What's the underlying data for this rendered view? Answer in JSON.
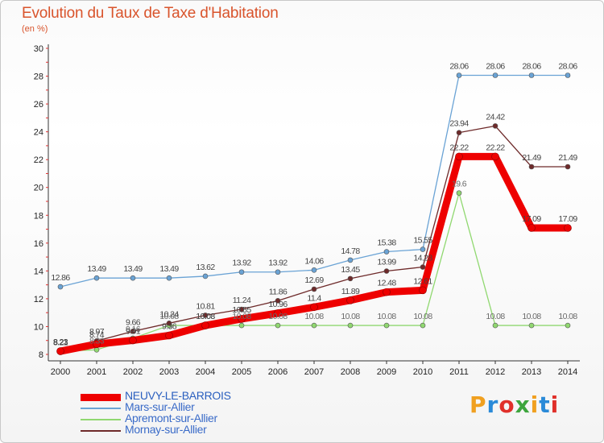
{
  "header": {
    "title": "Evolution du Taux de Taxe d'Habitation",
    "subtitle": "(en %)"
  },
  "logo": {
    "letters": [
      "P",
      "r",
      "o",
      "x",
      "i",
      "t",
      "i"
    ],
    "colors": [
      "#f0a020",
      "#2a8ad8",
      "#e0302a",
      "#3da53d",
      "#f0a020",
      "#2a8ad8",
      "#e0302a"
    ]
  },
  "chart_data": {
    "type": "line",
    "title": "Evolution du Taux de Taxe d'Habitation",
    "subtitle": "(en %)",
    "x": [
      "2000",
      "2001",
      "2002",
      "2003",
      "2004",
      "2005",
      "2006",
      "2007",
      "2008",
      "2009",
      "2010",
      "2011",
      "2012",
      "2013",
      "2014"
    ],
    "ylim": [
      8,
      30
    ],
    "yticks": [
      "8",
      "10",
      "12",
      "14",
      "16",
      "18",
      "20",
      "22",
      "24",
      "26",
      "28",
      "30"
    ],
    "grid": false,
    "legend": "bottom-left",
    "series": [
      {
        "name": "Mars-sur-Allier",
        "color": "#6aa3d5",
        "values": [
          12.86,
          13.49,
          13.49,
          13.49,
          13.62,
          13.92,
          13.92,
          14.06,
          14.78,
          15.38,
          15.55,
          28.06,
          28.06,
          28.06,
          28.06
        ],
        "labels": [
          "12.86",
          "13.49",
          "13.49",
          "13.49",
          "13.62",
          "13.92",
          "13.92",
          "14.06",
          "14.78",
          "15.38",
          "15.55",
          "28.06",
          "28.06",
          "28.06",
          "28.06"
        ]
      },
      {
        "name": "Apremont-sur-Allier",
        "color": "#90d870",
        "values": [
          8.23,
          8.33,
          9.16,
          10.08,
          10.08,
          10.08,
          10.08,
          10.08,
          10.08,
          10.08,
          10.08,
          19.6,
          10.08,
          10.08,
          10.08
        ],
        "labels": [
          "8.23",
          "8.33",
          "9.16",
          "10.08",
          "10.08",
          "10.08",
          "10.08",
          "10.08",
          "10.08",
          "10.08",
          "10.08",
          "19.6",
          "10.08",
          "10.08",
          "10.08"
        ]
      },
      {
        "name": "Mornay-sur-Allier",
        "color": "#6e2a2a",
        "values": [
          8.21,
          8.97,
          9.66,
          10.24,
          10.81,
          11.24,
          11.86,
          12.69,
          13.45,
          13.99,
          14.28,
          23.94,
          24.42,
          21.49,
          21.49
        ],
        "labels": [
          "8.21",
          "8.97",
          "9.66",
          "10.24",
          "10.81",
          "11.24",
          "11.86",
          "12.69",
          "13.45",
          "13.99",
          "14.28",
          "23.94",
          "24.42",
          "21.49",
          "21.49"
        ]
      },
      {
        "name": "NEUVY-LE-BARROIS",
        "color": "#ee0000",
        "values": [
          8.23,
          8.74,
          9.01,
          9.36,
          10.08,
          10.55,
          10.96,
          11.4,
          11.89,
          12.48,
          12.61,
          22.22,
          22.22,
          17.09,
          17.09
        ],
        "labels": [
          "8.23",
          "8.74",
          "9.01",
          "9.36",
          "10.08",
          "10.55",
          "10.96",
          "11.4",
          "11.89",
          "12.48",
          "12.61",
          "22.22",
          "22.22",
          "17.09",
          "17.09"
        ]
      }
    ]
  }
}
